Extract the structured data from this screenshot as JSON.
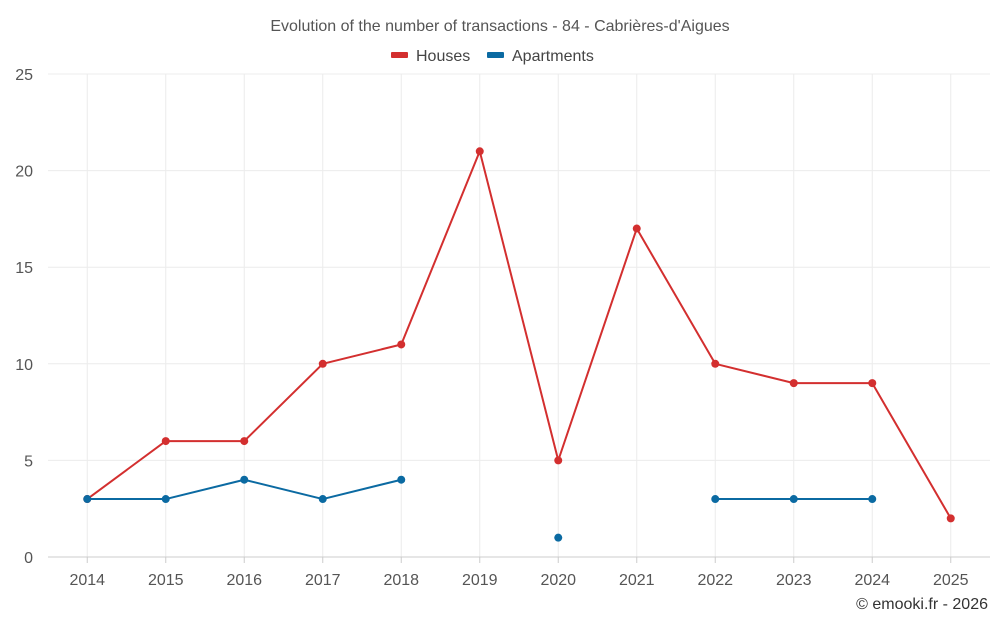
{
  "chart_data": {
    "type": "line",
    "title": "Evolution of the number of transactions - 84 - Cabrières-d'Aigues",
    "xlabel": "",
    "ylabel": "",
    "categories": [
      "2014",
      "2015",
      "2016",
      "2017",
      "2018",
      "2019",
      "2020",
      "2021",
      "2022",
      "2023",
      "2024",
      "2025"
    ],
    "ylim": [
      0,
      25
    ],
    "yticks": [
      0,
      5,
      10,
      15,
      20,
      25
    ],
    "grid": true,
    "legend_position": "top-center",
    "series": [
      {
        "name": "Houses",
        "color": "#d32f2f",
        "values": [
          3,
          6,
          6,
          10,
          11,
          21,
          5,
          17,
          10,
          9,
          9,
          2
        ]
      },
      {
        "name": "Apartments",
        "color": "#0b6aa2",
        "values": [
          3,
          3,
          4,
          3,
          4,
          null,
          1,
          null,
          3,
          3,
          3,
          null
        ]
      }
    ],
    "credit": "© emooki.fr - 2026"
  }
}
